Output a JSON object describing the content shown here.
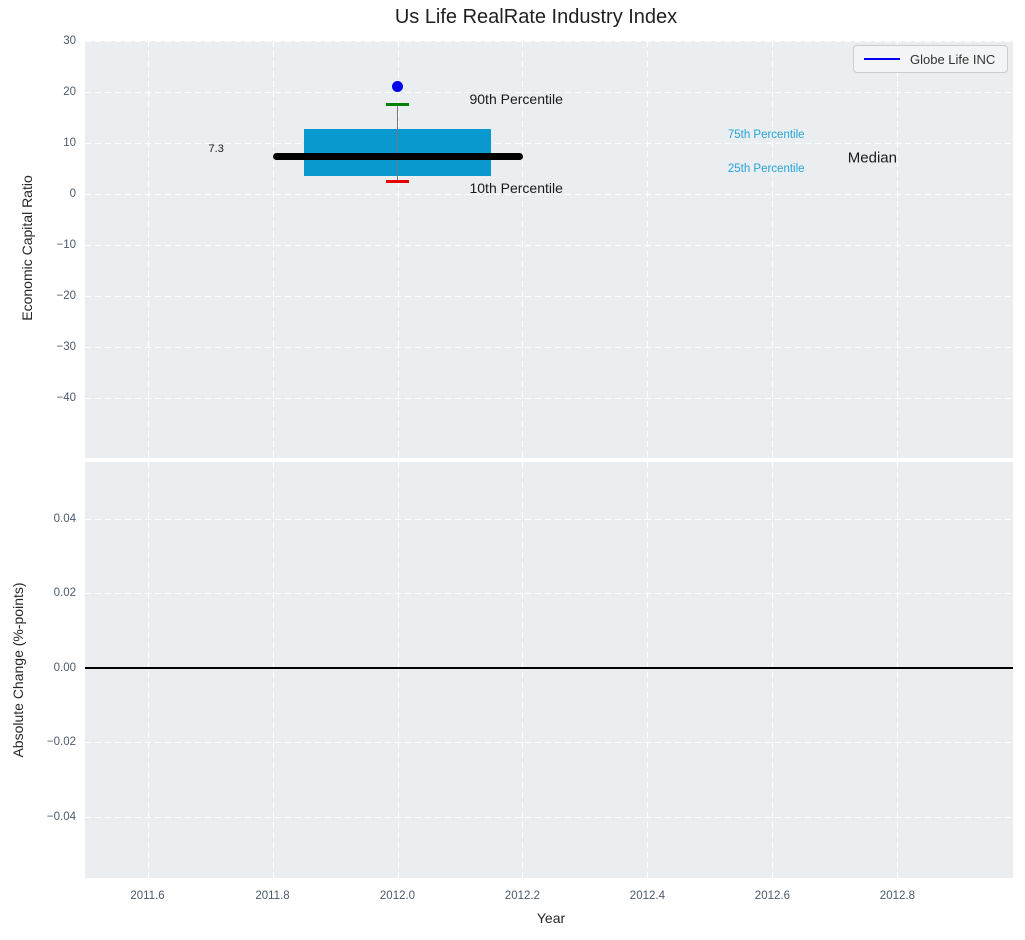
{
  "title": "Us Life RealRate Industry Index",
  "legend": {
    "label": "Globe Life INC"
  },
  "colors": {
    "plot_bg": "#eaeef0",
    "grid": "#ffffff",
    "tick_label": "#4a5a6b",
    "text": "#262626",
    "box_fill": "#0a99ce",
    "median_line": "#000000",
    "p90_cap": "#008000",
    "p10_cap": "#e60000",
    "whisker": "#777777",
    "company_dot": "#0000f0",
    "legend_line": "#0000f0",
    "legend_bg": "#f2f4f5",
    "legend_border": "#cccccc",
    "percentile_text": "#25a3d6",
    "zero_line": "#000000"
  },
  "chart_data": {
    "type": "boxplot",
    "title": "Us Life RealRate Industry Index",
    "xlabel": "Year",
    "grid": "on",
    "legend_position": "upper right",
    "x_axis": {
      "lim": [
        2011.5,
        2012.985
      ],
      "ticks": [
        2011.6,
        2011.8,
        2012.0,
        2012.2,
        2012.4,
        2012.6,
        2012.8
      ],
      "tick_labels": [
        "2011.6",
        "2011.8",
        "2012.0",
        "2012.2",
        "2012.4",
        "2012.6",
        "2012.8"
      ]
    },
    "top_panel": {
      "ylabel": "Economic Capital Ratio",
      "ylim": [
        -51.8,
        30
      ],
      "ticks": [
        30,
        20,
        10,
        0,
        -10,
        -20,
        -30,
        -40
      ],
      "tick_labels": [
        "30",
        "20",
        "10",
        "0",
        "−10",
        "−20",
        "−30",
        "−40"
      ],
      "series_name": "Globe Life INC",
      "box": {
        "x": 2012.0,
        "median": 7.3,
        "median_label": "7.3",
        "q1": 3.6,
        "q3": 12.7,
        "p10": 2.4,
        "p90": 17.5,
        "company_value": 21.0,
        "box_x_range": [
          2011.85,
          2012.15
        ],
        "median_x_range": [
          2011.8,
          2012.2
        ],
        "cap_x_range": [
          2011.982,
          2012.018
        ]
      },
      "annotations": [
        {
          "text": "7.3",
          "x": 2011.71,
          "y": 8.8,
          "style": "small-dark"
        },
        {
          "text": "90th Percentile",
          "x": 2012.19,
          "y": 18.6,
          "style": "medium-dark"
        },
        {
          "text": "10th Percentile",
          "x": 2012.19,
          "y": 1.1,
          "style": "medium-dark"
        },
        {
          "text": "75th Percentile",
          "x": 2012.59,
          "y": 11.6,
          "style": "small-blue"
        },
        {
          "text": "25th Percentile",
          "x": 2012.59,
          "y": 4.9,
          "style": "small-blue"
        },
        {
          "text": "Median",
          "x": 2012.76,
          "y": 7.1,
          "style": "large-dark"
        }
      ]
    },
    "bottom_panel": {
      "ylabel": "Absolute Change (%-points)",
      "ylim": [
        -0.0565,
        0.0553
      ],
      "ticks": [
        0.04,
        0.02,
        0.0,
        -0.02,
        -0.04
      ],
      "tick_labels": [
        "0.04",
        "0.02",
        "0.00",
        "−0.02",
        "−0.04"
      ],
      "zero_line": 0.0
    }
  }
}
